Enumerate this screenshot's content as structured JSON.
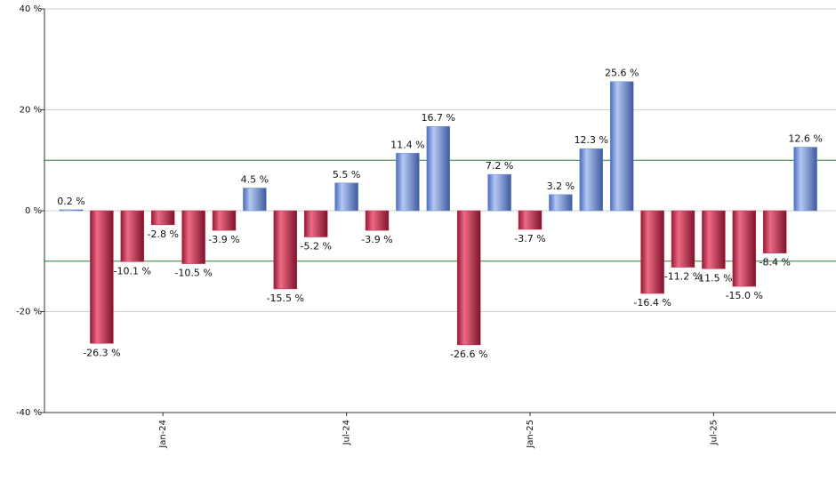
{
  "chart_data": {
    "type": "bar",
    "categories": [
      null,
      null,
      null,
      "Jan-24",
      null,
      null,
      null,
      null,
      null,
      "Jul-24",
      null,
      null,
      null,
      null,
      null,
      "Jan-25",
      null,
      null,
      null,
      null,
      null,
      "Jul-25",
      null,
      null,
      null
    ],
    "values": [
      0.2,
      -26.3,
      -10.1,
      -2.8,
      -10.5,
      -3.9,
      4.5,
      -15.5,
      -5.2,
      5.5,
      -3.9,
      11.4,
      16.7,
      -26.6,
      7.2,
      -3.7,
      3.2,
      12.3,
      25.6,
      -16.4,
      -11.2,
      -11.5,
      -15.0,
      -8.4,
      12.6
    ],
    "value_labels": [
      "0.2 %",
      "-26.3 %",
      "-10.1 %",
      "-2.8 %",
      "-10.5 %",
      "-3.9 %",
      "4.5 %",
      "-15.5 %",
      "-5.2 %",
      "5.5 %",
      "-3.9 %",
      "11.4 %",
      "16.7 %",
      "-26.6 %",
      "7.2 %",
      "-3.7 %",
      "3.2 %",
      "12.3 %",
      "25.6 %",
      "-16.4 %",
      "-11.2 %",
      "-11.5 %",
      "-15.0 %",
      "-8.4 %",
      "12.6 %"
    ],
    "positive_color": "#6f8fd6",
    "negative_color": "#c8304f",
    "ylim": [
      -40,
      40
    ],
    "yticks": [
      {
        "value": -40,
        "label": "-40 %"
      },
      {
        "value": -20,
        "label": "-20 %"
      },
      {
        "value": 0,
        "label": "0 %"
      },
      {
        "value": 20,
        "label": "20 %"
      },
      {
        "value": 40,
        "label": "40 %"
      }
    ],
    "grid": true,
    "reference_lines": [
      10,
      -10
    ],
    "reference_color": "#2e7d32"
  }
}
